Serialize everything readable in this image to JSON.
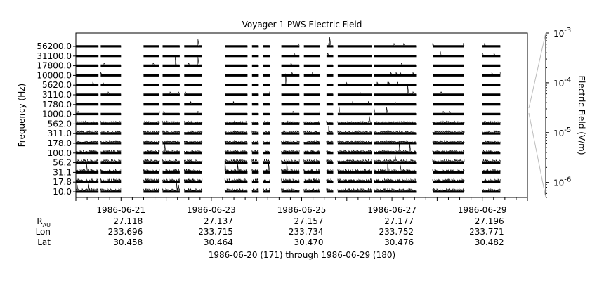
{
  "chart_data": {
    "type": "line",
    "title": "Voyager 1 PWS Electric Field",
    "ylabel": "Frequency (Hz)",
    "right_axis_label": "Electric Field (V/m)",
    "y_tick_labels": [
      "56200.0",
      "31100.0",
      "17800.0",
      "10000.0",
      "5620.0",
      "3110.0",
      "1780.0",
      "1000.0",
      "562.0",
      "311.0",
      "178.0",
      "100.0",
      "56.2",
      "31.1",
      "17.8",
      "10.0"
    ],
    "channels_hz": [
      56200.0,
      31100.0,
      17800.0,
      10000.0,
      5620.0,
      3110.0,
      1780.0,
      1000.0,
      562.0,
      311.0,
      178.0,
      100.0,
      56.2,
      31.1,
      17.8,
      10.0
    ],
    "right_axis_ticks": [
      {
        "base": "10",
        "exp": "-3",
        "value": 0.001
      },
      {
        "base": "10",
        "exp": "-4",
        "value": 0.0001
      },
      {
        "base": "10",
        "exp": "-5",
        "value": 1e-05
      },
      {
        "base": "10",
        "exp": "-6",
        "value": 1e-06
      }
    ],
    "right_axis_range": [
      5e-07,
      0.001
    ],
    "right_axis_scale": "log",
    "x_range_days": [
      0,
      10
    ],
    "x_tick_labels": [
      "1986-06-21",
      "1986-06-23",
      "1986-06-25",
      "1986-06-27",
      "1986-06-29"
    ],
    "x_tick_days": [
      1,
      3,
      5,
      7,
      9
    ],
    "ephemeris_rows": [
      {
        "label": "R",
        "sub": "AU",
        "values": [
          "27.118",
          "27.137",
          "27.157",
          "27.177",
          "27.196"
        ]
      },
      {
        "label": "Lon",
        "sub": "",
        "values": [
          "233.696",
          "233.715",
          "233.734",
          "233.752",
          "233.771"
        ]
      },
      {
        "label": "Lat",
        "sub": "",
        "values": [
          "30.458",
          "30.464",
          "30.470",
          "30.476",
          "30.482"
        ]
      }
    ],
    "date_range_label": "1986-06-20 (171) through 1986-06-29 (180)",
    "data_segments_days": [
      [
        0.0,
        0.5
      ],
      [
        0.55,
        1.0
      ],
      [
        1.5,
        1.85
      ],
      [
        1.92,
        2.3
      ],
      [
        2.4,
        2.8
      ],
      [
        3.3,
        3.8
      ],
      [
        3.9,
        4.05
      ],
      [
        4.15,
        4.3
      ],
      [
        4.55,
        4.95
      ],
      [
        5.05,
        5.4
      ],
      [
        5.55,
        5.7
      ],
      [
        5.8,
        6.55
      ],
      [
        6.6,
        7.55
      ],
      [
        7.9,
        8.6
      ],
      [
        9.0,
        9.4
      ]
    ],
    "grid": false,
    "legend": "none"
  }
}
